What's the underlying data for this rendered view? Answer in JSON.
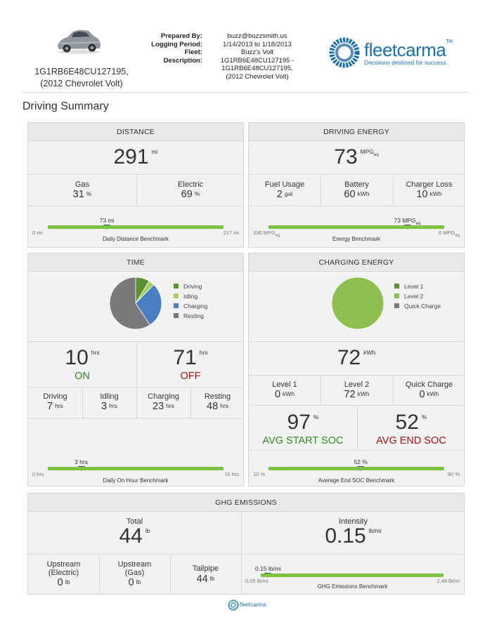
{
  "header": {
    "vin_line1": "1G1RB6E48CU127195,",
    "vin_line2": "(2012 Chevrolet Volt)",
    "prepared_by_label": "Prepared By:",
    "logging_period_label": "Logging Period:",
    "fleet_label": "Fleet:",
    "description_label": "Description:",
    "prepared_by": "buzz@buzzsmith.us",
    "logging_period": "1/14/2013 to 1/18/2013",
    "fleet": "Buzz's Volt",
    "description_1": "1G1RB6E48CU127195 -",
    "description_2": "1G1RB6E48CU127195,",
    "description_3": "(2012 Chevrolet Volt)",
    "brand_name": "fleetcarma",
    "brand_tm": "TM",
    "brand_tagline": "Decisions destined for success."
  },
  "page_title": "Driving Summary",
  "distance": {
    "title": "DISTANCE",
    "total": "291",
    "total_unit": "mi",
    "gas_label": "Gas",
    "gas_value": "31",
    "gas_unit": "%",
    "electric_label": "Electric",
    "electric_value": "69",
    "electric_unit": "%",
    "bench_value": "73 mi",
    "bench_min": "0 mi",
    "bench_max": "217 mi",
    "bench_label": "Daily Distance Benchmark",
    "bench_fraction": 0.336
  },
  "energy": {
    "title": "DRIVING ENERGY",
    "total": "73",
    "total_unit": "MPG",
    "total_sub": "eq",
    "fuel_label": "Fuel Usage",
    "fuel_value": "2",
    "fuel_unit": "gal",
    "battery_label": "Battery",
    "battery_value": "60",
    "battery_unit": "kWh",
    "charger_label": "Charger Loss",
    "charger_value": "10",
    "charger_unit": "kWh",
    "bench_value": "73 MPG",
    "bench_value_sub": "eq",
    "bench_min": "336 MPG",
    "bench_min_sub": "eq",
    "bench_max": "6 MPG",
    "bench_max_sub": "eq",
    "bench_label": "Energy Benchmark",
    "bench_fraction": 0.79
  },
  "time": {
    "title": "TIME",
    "legend": [
      {
        "label": "Driving",
        "color": "#5c8f2f"
      },
      {
        "label": "Idling",
        "color": "#a5cf63"
      },
      {
        "label": "Charging",
        "color": "#4a7ec2"
      },
      {
        "label": "Resting",
        "color": "#7a7a7a"
      }
    ],
    "on_value": "10",
    "on_unit": "hrs",
    "on_label": "ON",
    "off_value": "71",
    "off_unit": "hrs",
    "off_label": "OFF",
    "driving_label": "Driving",
    "driving_value": "7",
    "driving_unit": "hrs",
    "idling_label": "Idling",
    "idling_value": "3",
    "idling_unit": "hrs",
    "charging_label": "Charging",
    "charging_value": "23",
    "charging_unit": "hrs",
    "resting_label": "Resting",
    "resting_value": "48",
    "resting_unit": "hrs",
    "bench_value": "3 hrs",
    "bench_min": "0 hrs",
    "bench_max": "16 hrs",
    "bench_label": "Daily On Hour Benchmark",
    "bench_fraction": 0.19
  },
  "charging": {
    "title": "CHARGING ENERGY",
    "legend": [
      {
        "label": "Level 1",
        "color": "#5c8f2f"
      },
      {
        "label": "Level 2",
        "color": "#8dc04e"
      },
      {
        "label": "Quick Charge",
        "color": "#7a7a7a"
      }
    ],
    "total": "72",
    "total_unit": "kWh",
    "l1_label": "Level 1",
    "l1_value": "0",
    "l1_unit": "kWh",
    "l2_label": "Level 2",
    "l2_value": "72",
    "l2_unit": "kWh",
    "qc_label": "Quick Charge",
    "qc_value": "0",
    "qc_unit": "kWh",
    "start_soc": "97",
    "start_soc_unit": "%",
    "start_soc_label": "AVG START SOC",
    "end_soc": "52",
    "end_soc_unit": "%",
    "end_soc_label": "AVG END SOC",
    "bench_value": "52 %",
    "bench_min": "10 %",
    "bench_max": "90 %",
    "bench_label": "Average End SOC Benchmark",
    "bench_fraction": 0.525
  },
  "ghg": {
    "title": "GHG EMISSIONS",
    "total_label": "Total",
    "total_value": "44",
    "total_unit": "lb",
    "intensity_label": "Intensity",
    "intensity_value": "0.15",
    "intensity_unit": "lb/mi",
    "up_elec_label1": "Upstream",
    "up_elec_label2": "(Electric)",
    "up_elec_value": "0",
    "up_elec_unit": "lb",
    "up_gas_label1": "Upstream",
    "up_gas_label2": "(Gas)",
    "up_gas_value": "0",
    "up_gas_unit": "lb",
    "tailpipe_label": "Tailpipe",
    "tailpipe_value": "44",
    "tailpipe_unit": "lb",
    "bench_value": "0.15 lb/mi",
    "bench_min": "0.05 lb/mi",
    "bench_max": "2.48 lb/mi",
    "bench_label": "GHG Emissions Benchmark",
    "bench_fraction": 0.04
  },
  "chart_data": [
    {
      "type": "pie",
      "title": "TIME",
      "categories": [
        "Driving",
        "Idling",
        "Charging",
        "Resting"
      ],
      "values": [
        7,
        3,
        23,
        48
      ],
      "colors": [
        "#5c8f2f",
        "#a5cf63",
        "#4a7ec2",
        "#7a7a7a"
      ],
      "legend": "right"
    },
    {
      "type": "pie",
      "title": "CHARGING ENERGY",
      "categories": [
        "Level 1",
        "Level 2",
        "Quick Charge"
      ],
      "values": [
        0,
        72,
        0
      ],
      "colors": [
        "#5c8f2f",
        "#8dc04e",
        "#7a7a7a"
      ],
      "legend": "right"
    }
  ],
  "footer": {
    "brand": "fleetcarma."
  }
}
